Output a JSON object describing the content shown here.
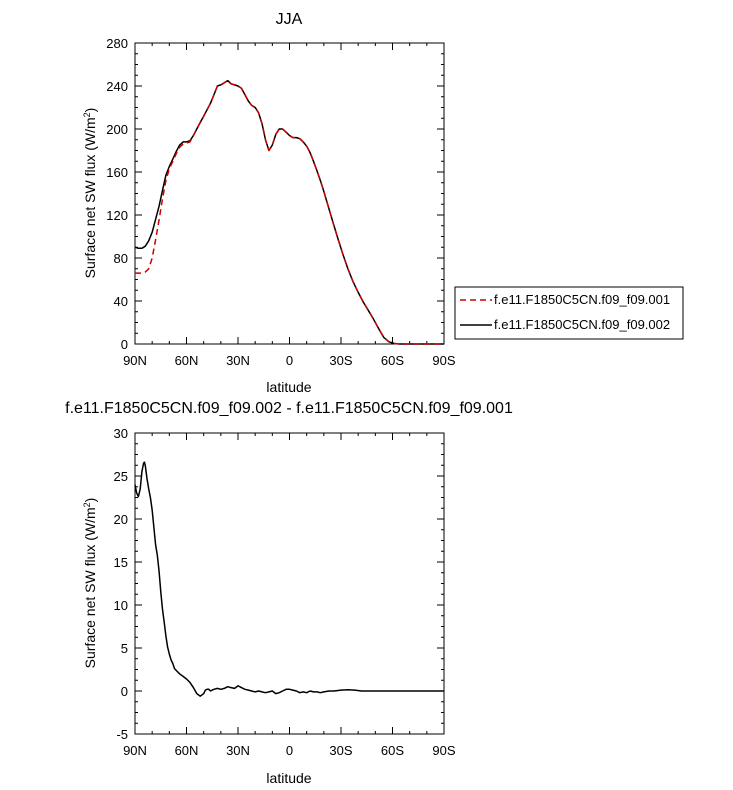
{
  "chart_data": [
    {
      "type": "line",
      "title": "JJA",
      "xlabel": "latitude",
      "ylabel": "Surface net SW flux (W/m",
      "ylabel_sup": "2",
      "ylabel_close": ")",
      "xlim": [
        90,
        -90
      ],
      "ylim": [
        0,
        280
      ],
      "xticks": [
        90,
        60,
        30,
        0,
        -30,
        -60,
        -90
      ],
      "xtick_labels": [
        "90N",
        "60N",
        "30N",
        "0",
        "30S",
        "60S",
        "90S"
      ],
      "yticks": [
        0,
        40,
        80,
        120,
        160,
        200,
        240,
        280
      ],
      "ytick_labels": [
        "0",
        "40",
        "80",
        "120",
        "160",
        "200",
        "240",
        "280"
      ],
      "legend_position": "right, outside plot",
      "series": [
        {
          "name": "f.e11.F1850C5CN.f09_f09.001",
          "color": "#cc0000",
          "dash": "dashed",
          "x": [
            90,
            88,
            86,
            84,
            82,
            80,
            78,
            76,
            74,
            72,
            70,
            68,
            66,
            64,
            62,
            60,
            58,
            56,
            54,
            52,
            50,
            48,
            46,
            44,
            42,
            40,
            38,
            36,
            34,
            32,
            30,
            28,
            26,
            24,
            22,
            20,
            18,
            16,
            14,
            12,
            10,
            8,
            6,
            4,
            2,
            0,
            -2,
            -4,
            -6,
            -8,
            -10,
            -12,
            -14,
            -16,
            -18,
            -20,
            -22,
            -25,
            -28,
            -31,
            -34,
            -37,
            -40,
            -43,
            -46,
            -49,
            -52,
            -55,
            -58,
            -61,
            -64,
            -66,
            -68,
            -70,
            -72,
            -75,
            -80,
            -85,
            -90
          ],
          "y": [
            66,
            66,
            66,
            67,
            70,
            80,
            97,
            115,
            135,
            152,
            163,
            170,
            177,
            183,
            186,
            187,
            188,
            194,
            200,
            206,
            212,
            218,
            224,
            232,
            240,
            241,
            243,
            245,
            242,
            241,
            240,
            238,
            232,
            226,
            222,
            220,
            215,
            205,
            190,
            180,
            185,
            195,
            200,
            200,
            197,
            194,
            192,
            192,
            191,
            188,
            184,
            178,
            170,
            161,
            152,
            142,
            131,
            115,
            99,
            84,
            70,
            58,
            48,
            39,
            31,
            23,
            14,
            6,
            2,
            0.5,
            0,
            0,
            0,
            0,
            0,
            0,
            0,
            0,
            0
          ]
        },
        {
          "name": "f.e11.F1850C5CN.f09_f09.002",
          "color": "#000000",
          "dash": "solid",
          "x": [
            90,
            88,
            86,
            84,
            82,
            80,
            78,
            76,
            74,
            72,
            70,
            68,
            66,
            64,
            62,
            60,
            58,
            56,
            54,
            52,
            50,
            48,
            46,
            44,
            42,
            40,
            38,
            36,
            34,
            32,
            30,
            28,
            26,
            24,
            22,
            20,
            18,
            16,
            14,
            12,
            10,
            8,
            6,
            4,
            2,
            0,
            -2,
            -4,
            -6,
            -8,
            -10,
            -12,
            -14,
            -16,
            -18,
            -20,
            -22,
            -25,
            -28,
            -31,
            -34,
            -37,
            -40,
            -43,
            -46,
            -49,
            -52,
            -55,
            -58,
            -61,
            -64,
            -66,
            -68,
            -70,
            -72,
            -75,
            -80,
            -85,
            -90
          ],
          "y": [
            90,
            89,
            89,
            91,
            96,
            104,
            116,
            128,
            143,
            157,
            165,
            172,
            179,
            185,
            188,
            188,
            189,
            194,
            200,
            206,
            212,
            218,
            224,
            232,
            240,
            241,
            243,
            245,
            242,
            241,
            240,
            238,
            232,
            226,
            222,
            220,
            215,
            205,
            190,
            180,
            185,
            195,
            200,
            200,
            197,
            194,
            192,
            192,
            191,
            188,
            184,
            178,
            170,
            161,
            152,
            142,
            131,
            115,
            99,
            84,
            70,
            58,
            48,
            39,
            31,
            23,
            14,
            6,
            2,
            0.5,
            0,
            0,
            0,
            0,
            0,
            0,
            0,
            0,
            0
          ]
        }
      ]
    },
    {
      "type": "line",
      "title": "f.e11.F1850C5CN.f09_f09.002 - f.e11.F1850C5CN.f09_f09.001",
      "xlabel": "latitude",
      "ylabel": "Surface net SW flux (W/m",
      "ylabel_sup": "2",
      "ylabel_close": ")",
      "xlim": [
        90,
        -90
      ],
      "ylim": [
        -5,
        30
      ],
      "xticks": [
        90,
        60,
        30,
        0,
        -30,
        -60,
        -90
      ],
      "xtick_labels": [
        "90N",
        "60N",
        "30N",
        "0",
        "30S",
        "60S",
        "90S"
      ],
      "yticks": [
        -5,
        0,
        5,
        10,
        15,
        20,
        25,
        30
      ],
      "ytick_labels": [
        "-5",
        "0",
        "5",
        "10",
        "15",
        "20",
        "25",
        "30"
      ],
      "series": [
        {
          "color": "#000000",
          "dash": "solid",
          "x": [
            90,
            89,
            88,
            87,
            86,
            85,
            84.5,
            84,
            83,
            82,
            81,
            80,
            79,
            78,
            77,
            76,
            75,
            74,
            73,
            72,
            71,
            70,
            69,
            68,
            67,
            66,
            65,
            64,
            62,
            60,
            58,
            56,
            54,
            52,
            50,
            49,
            48,
            47,
            46,
            45,
            44,
            42,
            40,
            38,
            36,
            34,
            32,
            30,
            28,
            26,
            24,
            22,
            20,
            18,
            16,
            14,
            12,
            10,
            8,
            6,
            4,
            2,
            0,
            -2,
            -4,
            -6,
            -8,
            -10,
            -12,
            -14,
            -16,
            -18,
            -20,
            -23,
            -26,
            -30,
            -34,
            -38,
            -42,
            -46,
            -50,
            -55,
            -60,
            -65,
            -70,
            -80,
            -90
          ],
          "y": [
            24,
            23,
            22.6,
            23.5,
            25.5,
            26.5,
            26.6,
            26.2,
            24.7,
            23.5,
            22.5,
            21,
            19,
            17,
            15.8,
            14,
            11.5,
            9.5,
            8,
            6.4,
            5.1,
            4.3,
            3.6,
            3.2,
            2.6,
            2.4,
            2.2,
            2.0,
            1.7,
            1.4,
            1.0,
            0.4,
            -0.3,
            -0.6,
            -0.3,
            0.1,
            0.2,
            0.2,
            0.0,
            0.1,
            0.2,
            0.3,
            0.2,
            0.3,
            0.5,
            0.4,
            0.3,
            0.6,
            0.4,
            0.2,
            0.1,
            0.0,
            -0.1,
            0.0,
            -0.1,
            -0.2,
            -0.1,
            0.0,
            -0.3,
            -0.2,
            0.0,
            0.2,
            0.2,
            0.1,
            0.0,
            -0.2,
            -0.1,
            -0.2,
            0.0,
            -0.1,
            -0.1,
            -0.2,
            -0.1,
            0.0,
            0.0,
            0.1,
            0.15,
            0.1,
            0.0,
            0.0,
            0.0,
            0.0,
            0.0,
            0.0,
            0.0,
            0.0,
            0.0
          ]
        }
      ]
    }
  ]
}
